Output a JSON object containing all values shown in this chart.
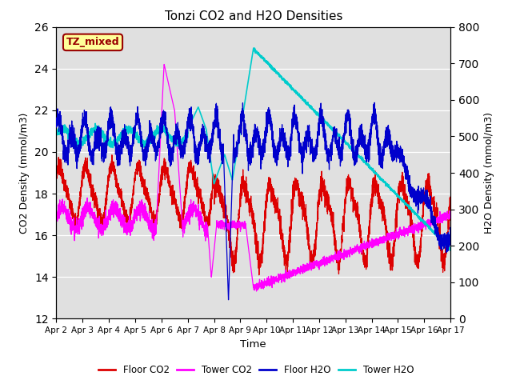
{
  "title": "Tonzi CO2 and H2O Densities",
  "xlabel": "Time",
  "ylabel_left": "CO2 Density (mmol/m3)",
  "ylabel_right": "H2O Density (mmol/m3)",
  "ylim_left": [
    12,
    26
  ],
  "ylim_right": [
    0,
    800
  ],
  "yticks_left": [
    12,
    14,
    16,
    18,
    20,
    22,
    24,
    26
  ],
  "yticks_right": [
    0,
    100,
    200,
    300,
    400,
    500,
    600,
    700,
    800
  ],
  "xtick_labels": [
    "Apr 2",
    "Apr 3",
    "Apr 4",
    "Apr 5",
    "Apr 6",
    "Apr 7",
    "Apr 8",
    "Apr 9",
    "Apr 10",
    "Apr 11",
    "Apr 12",
    "Apr 13",
    "Apr 14",
    "Apr 15",
    "Apr 16",
    "Apr 17"
  ],
  "colors": {
    "floor_co2": "#dd0000",
    "tower_co2": "#ff00ff",
    "floor_h2o": "#0000cc",
    "tower_h2o": "#00cccc"
  },
  "legend_label": "TZ_mixed",
  "legend_label_color": "#990000",
  "legend_label_bg": "#ffff99",
  "legend_label_edge": "#990000",
  "bg_color": "#e0e0e0",
  "legend_entries": [
    "Floor CO2",
    "Tower CO2",
    "Floor H2O",
    "Tower H2O"
  ],
  "n_points": 4000,
  "seed": 7
}
